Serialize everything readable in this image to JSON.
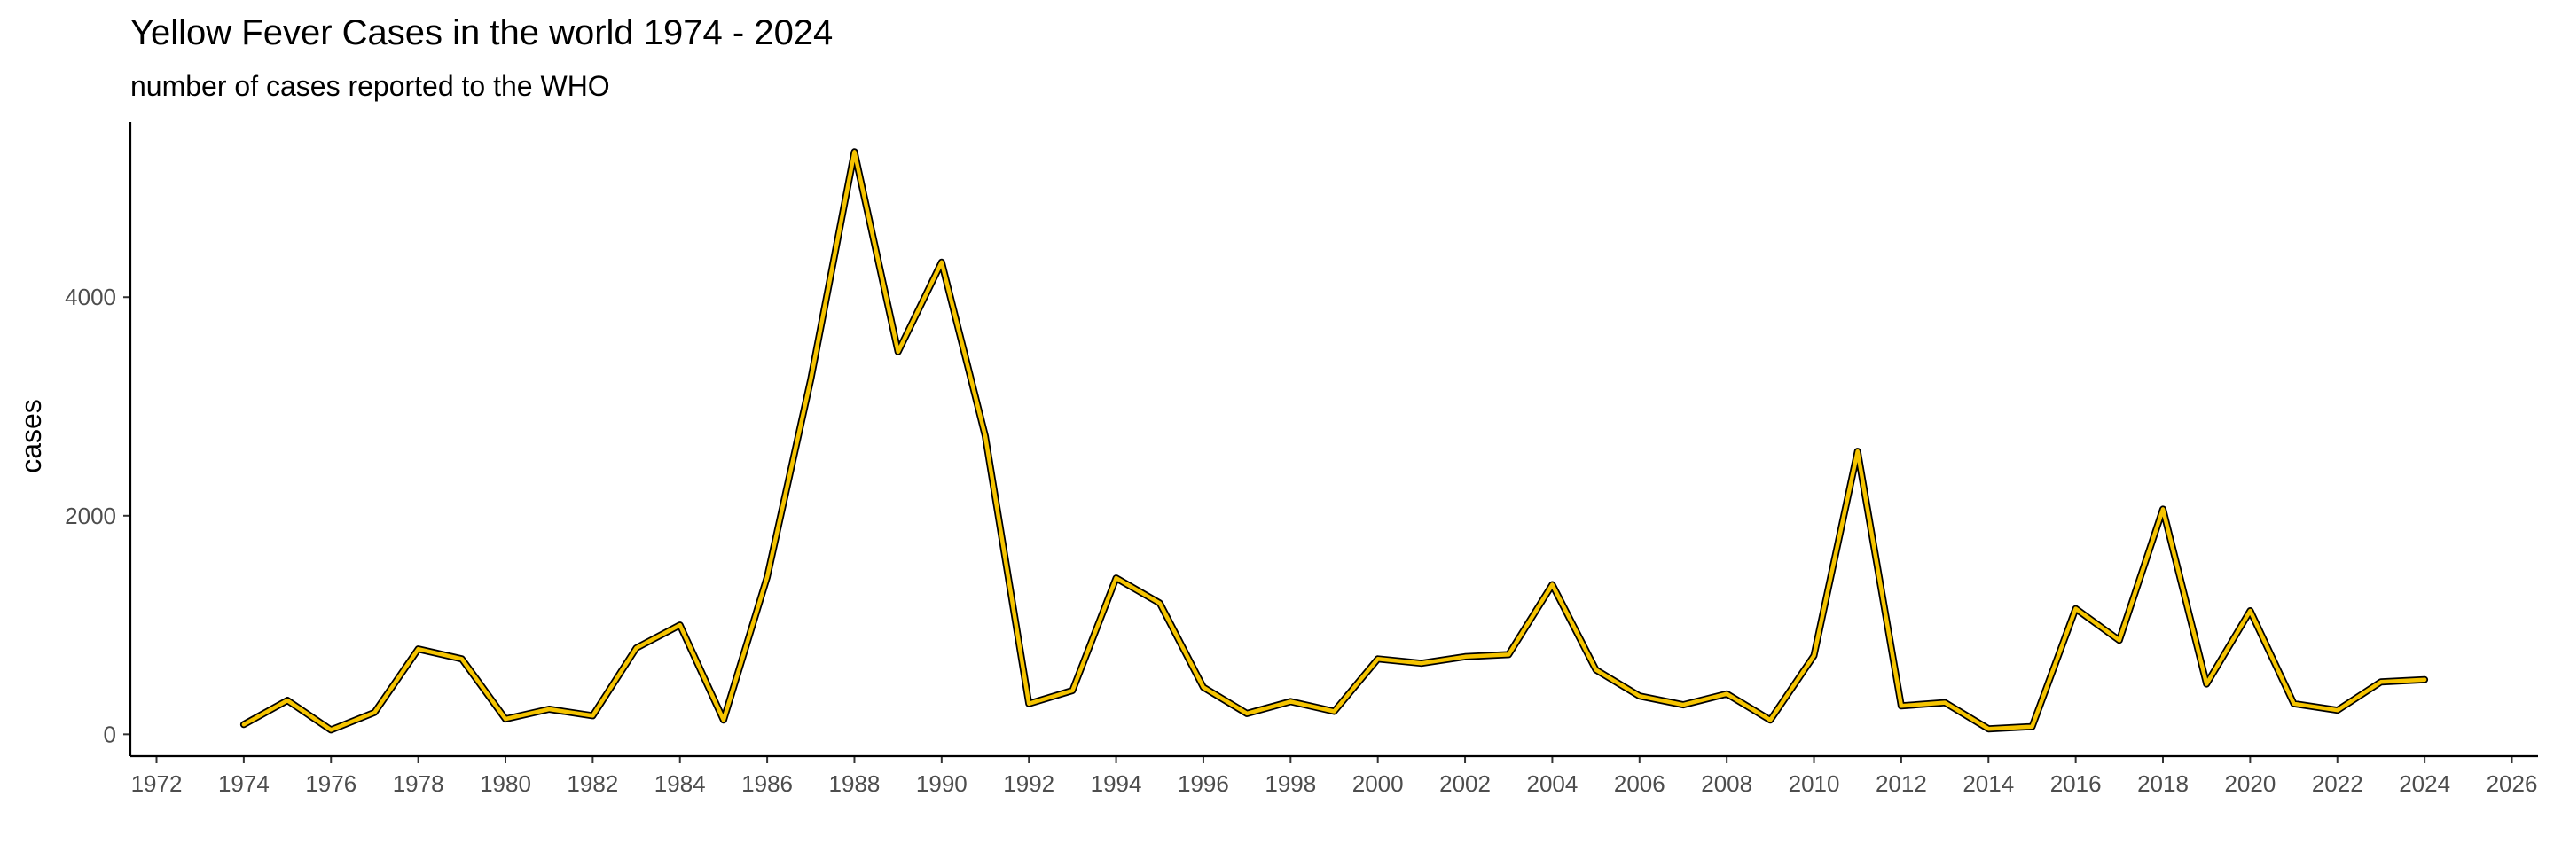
{
  "chart_data": {
    "type": "line",
    "title": "Yellow Fever Cases in the world 1974 - 2024",
    "subtitle": "number of cases reported to the WHO",
    "xlabel": "",
    "ylabel": "cases",
    "xlim": [
      1971.4,
      2026.6
    ],
    "ylim": [
      -200,
      5600
    ],
    "x_ticks": [
      1972,
      1974,
      1976,
      1978,
      1980,
      1982,
      1984,
      1986,
      1988,
      1990,
      1992,
      1994,
      1996,
      1998,
      2000,
      2002,
      2004,
      2006,
      2008,
      2010,
      2012,
      2014,
      2016,
      2018,
      2020,
      2022,
      2024,
      2026
    ],
    "y_ticks": [
      0,
      2000,
      4000
    ],
    "grid": false,
    "legend": "none",
    "colors": {
      "line": "#f5c400",
      "outline": "#000000",
      "axis": "#000000",
      "tick_label": "#4d4d4d"
    },
    "x": [
      1974,
      1975,
      1976,
      1977,
      1978,
      1979,
      1980,
      1981,
      1982,
      1983,
      1984,
      1985,
      1986,
      1987,
      1988,
      1989,
      1990,
      1991,
      1992,
      1993,
      1994,
      1995,
      1996,
      1997,
      1998,
      1999,
      2000,
      2001,
      2002,
      2003,
      2004,
      2005,
      2006,
      2007,
      2008,
      2009,
      2010,
      2011,
      2012,
      2013,
      2014,
      2015,
      2016,
      2017,
      2018,
      2019,
      2020,
      2021,
      2022,
      2023,
      2024
    ],
    "series": [
      {
        "values": [
          90,
          310,
          40,
          200,
          780,
          690,
          140,
          230,
          170,
          790,
          1000,
          130,
          1440,
          3250,
          5330,
          3500,
          4320,
          2730,
          280,
          400,
          1430,
          1200,
          430,
          190,
          300,
          210,
          690,
          650,
          710,
          730,
          1370,
          590,
          350,
          270,
          370,
          130,
          720,
          2590,
          260,
          290,
          50,
          70,
          1150,
          860,
          2060,
          460,
          1130,
          280,
          220,
          480,
          500
        ]
      }
    ]
  }
}
